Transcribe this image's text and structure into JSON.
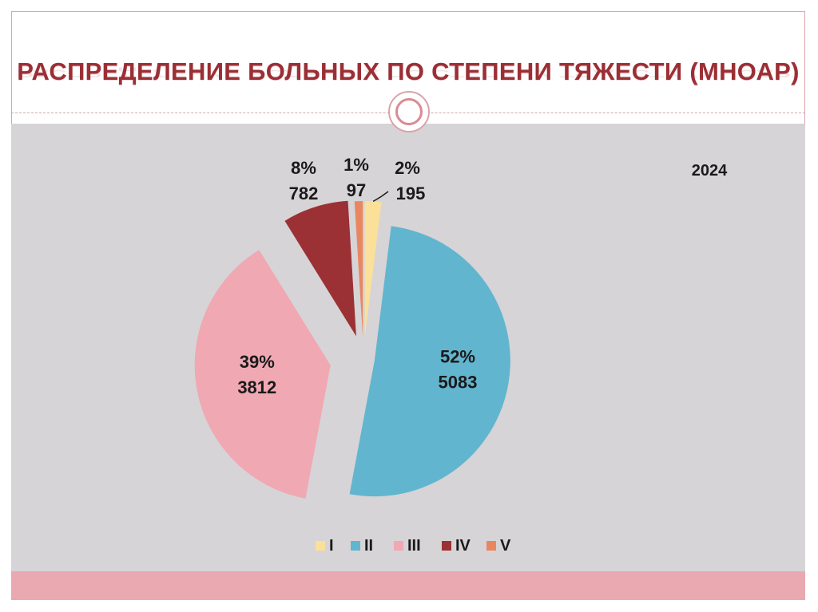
{
  "slide": {
    "title": "РАСПРЕДЕЛЕНИЕ БОЛЬНЫХ ПО СТЕПЕНИ ТЯЖЕСТИ (МНОАР)"
  },
  "chart_data": {
    "type": "pie",
    "title": "",
    "annotation": "2024",
    "categories": [
      "I",
      "II",
      "III",
      "IV",
      "V"
    ],
    "values": [
      195,
      5083,
      3812,
      782,
      97
    ],
    "percent_labels": [
      "2%",
      "52%",
      "39%",
      "8%",
      "1%"
    ],
    "value_labels": [
      "195",
      "5083",
      "3812",
      "782",
      "97"
    ],
    "colors": [
      "#fbe09a",
      "#62b5cf",
      "#f0a8b3",
      "#9b3134",
      "#e8875f"
    ],
    "legend_position": "bottom",
    "exploded": true
  }
}
